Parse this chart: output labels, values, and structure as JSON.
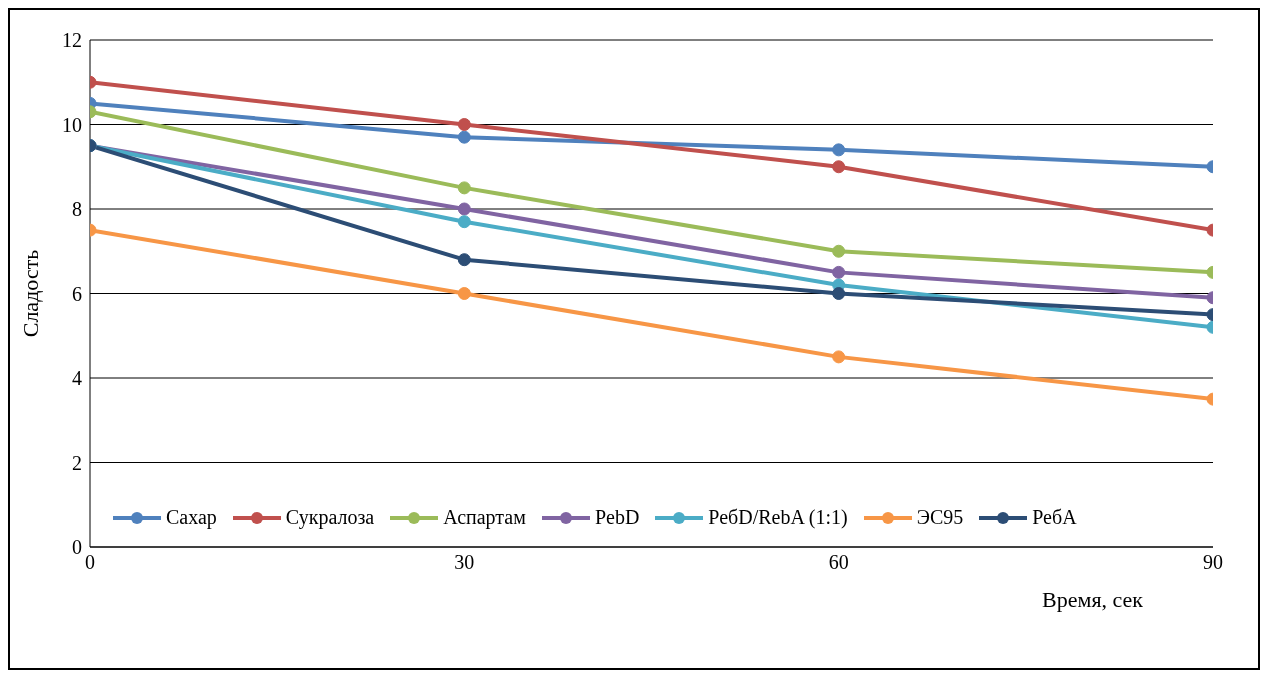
{
  "chart_data": {
    "type": "line",
    "xlabel": "Время, сек",
    "ylabel": "Сладость",
    "x": [
      0,
      30,
      60,
      90
    ],
    "xlim": [
      0,
      90
    ],
    "xticks": [
      0,
      30,
      60,
      90
    ],
    "ylim": [
      0,
      12
    ],
    "yticks": [
      0,
      2,
      4,
      6,
      8,
      10,
      12
    ],
    "grid": "y",
    "legend": "bottom",
    "marker": "circle",
    "line_style": "solid",
    "series": [
      {
        "name": "Сахар",
        "color": "#4f81bd",
        "values": [
          10.5,
          9.7,
          9.4,
          9.0
        ]
      },
      {
        "name": "Сукралоза",
        "color": "#c0504d",
        "values": [
          11,
          10,
          9,
          7.5
        ]
      },
      {
        "name": "Аспартам",
        "color": "#9bbb59",
        "values": [
          10.3,
          8.5,
          7.0,
          6.5
        ]
      },
      {
        "name": "PebD",
        "color": "#8064a2",
        "values": [
          9.5,
          8.0,
          6.5,
          5.9
        ]
      },
      {
        "name": "РебD/RebA (1:1)",
        "color": "#4bacc6",
        "values": [
          9.5,
          7.7,
          6.2,
          5.2
        ]
      },
      {
        "name": "ЭС95",
        "color": "#f79646",
        "values": [
          7.5,
          6.0,
          4.5,
          3.5
        ]
      },
      {
        "name": "РебA",
        "color": "#2c4d75",
        "values": [
          9.5,
          6.8,
          6.0,
          5.5
        ]
      }
    ]
  }
}
